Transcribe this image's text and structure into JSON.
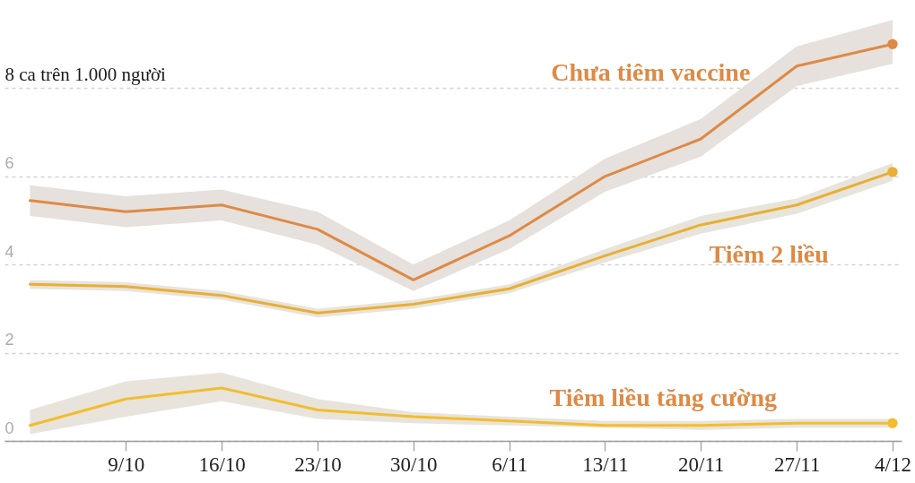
{
  "chart_data": {
    "type": "line",
    "categories": [
      null,
      "9/10",
      "16/10",
      "23/10",
      "30/10",
      "6/11",
      "13/11",
      "20/11",
      "27/11",
      "4/12"
    ],
    "series": [
      {
        "name": "Chưa tiêm vaccine",
        "color": "#de8a45",
        "values": [
          5.45,
          5.2,
          5.35,
          4.8,
          3.65,
          4.65,
          6.0,
          6.85,
          8.5,
          9.0
        ],
        "lower": [
          5.1,
          4.85,
          5.0,
          4.45,
          3.4,
          4.35,
          5.65,
          6.45,
          8.05,
          8.55
        ],
        "upper": [
          5.8,
          5.55,
          5.7,
          5.2,
          4.0,
          5.0,
          6.4,
          7.3,
          8.95,
          9.55
        ]
      },
      {
        "name": "Tiêm 2 liều",
        "color": "#e9ae35",
        "values": [
          3.55,
          3.5,
          3.3,
          2.9,
          3.1,
          3.45,
          4.2,
          4.9,
          5.35,
          6.1
        ],
        "lower": [
          3.45,
          3.4,
          3.2,
          2.8,
          3.0,
          3.35,
          4.05,
          4.7,
          5.15,
          5.9
        ],
        "upper": [
          3.65,
          3.6,
          3.4,
          3.0,
          3.2,
          3.55,
          4.35,
          5.1,
          5.5,
          6.3
        ]
      },
      {
        "name": "Tiêm liều tăng cường",
        "color": "#f2bd2f",
        "values": [
          0.35,
          0.95,
          1.2,
          0.7,
          0.55,
          0.45,
          0.35,
          0.35,
          0.4,
          0.4
        ],
        "lower": [
          0.15,
          0.55,
          0.9,
          0.5,
          0.4,
          0.35,
          0.3,
          0.25,
          0.3,
          0.3
        ],
        "upper": [
          0.7,
          1.35,
          1.55,
          0.95,
          0.65,
          0.55,
          0.45,
          0.45,
          0.5,
          0.5
        ]
      },
      {
        "type": "scatter",
        "marker": "circle",
        "color": "#de8a45",
        "values": [
          null,
          null,
          null,
          null,
          null,
          null,
          null,
          null,
          null,
          9.0
        ]
      },
      {
        "type": "scatter",
        "marker": "circle",
        "color": "#e9ae35",
        "values": [
          null,
          null,
          null,
          null,
          null,
          null,
          null,
          null,
          null,
          6.1
        ]
      },
      {
        "type": "scatter",
        "marker": "circle",
        "color": "#f2bd2f",
        "values": [
          null,
          null,
          null,
          null,
          null,
          null,
          null,
          null,
          null,
          0.4
        ]
      }
    ],
    "ylim": [
      0,
      10
    ],
    "yticks": [
      0,
      2,
      4,
      6,
      {
        "value": 8,
        "label": "8 ca trên 1.000 người"
      }
    ],
    "grid": "y",
    "line_style": "solid"
  }
}
